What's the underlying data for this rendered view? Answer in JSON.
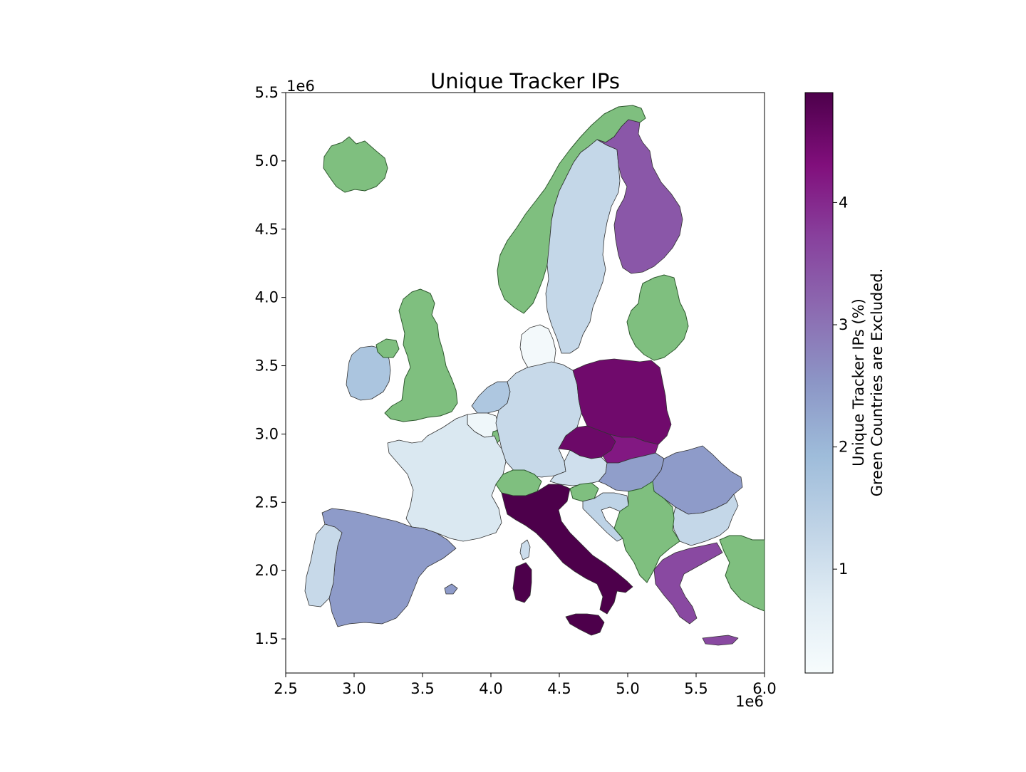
{
  "map": {
    "title": "Unique Tracker IPs",
    "x_offset_label": "1e6",
    "y_offset_label": "1e6",
    "excluded_color": "#7fbf7f",
    "x_ticks": [
      "2.5",
      "3.0",
      "3.5",
      "4.0",
      "4.5",
      "5.0",
      "5.5",
      "6.0"
    ],
    "y_ticks": [
      "5.5",
      "5.0",
      "4.5",
      "4.0",
      "3.5",
      "3.0",
      "2.5",
      "2.0",
      "1.5"
    ],
    "x_range": [
      2500000,
      6000000
    ],
    "y_range": [
      1250000,
      5500000
    ]
  },
  "colorbar": {
    "label_line1": "Unique Tracker IPs (%)",
    "label_line2": "Green Countries are Excluded.",
    "ticks": [
      "1",
      "2",
      "3",
      "4"
    ],
    "range": [
      0.15,
      4.9
    ],
    "colormap": [
      "#f7fcfd",
      "#e0ecf4",
      "#bfd3e6",
      "#9ebcda",
      "#8c96c6",
      "#8c6bb1",
      "#88419d",
      "#810f7c",
      "#4d004b"
    ]
  },
  "regions": [
    {
      "key": "iceland",
      "value": null
    },
    {
      "key": "norway",
      "value": null
    },
    {
      "key": "sweden",
      "value": 1.25
    },
    {
      "key": "finland",
      "value": 3.4
    },
    {
      "key": "baltics",
      "value": null
    },
    {
      "key": "uk",
      "value": null
    },
    {
      "key": "ireland",
      "value": 1.7
    },
    {
      "key": "n-ireland",
      "value": null
    },
    {
      "key": "denmark",
      "value": 0.25
    },
    {
      "key": "netherlands",
      "value": 1.65
    },
    {
      "key": "belgium",
      "value": 0.35
    },
    {
      "key": "luxembourg",
      "value": null
    },
    {
      "key": "germany",
      "value": 1.2
    },
    {
      "key": "poland",
      "value": 4.5
    },
    {
      "key": "czechia",
      "value": 4.55
    },
    {
      "key": "slovakia",
      "value": 4.2
    },
    {
      "key": "austria",
      "value": 1.05
    },
    {
      "key": "hungary",
      "value": 2.4
    },
    {
      "key": "romania",
      "value": 2.45
    },
    {
      "key": "bulgaria",
      "value": 1.25
    },
    {
      "key": "france",
      "value": 0.85
    },
    {
      "key": "switzerland",
      "value": null
    },
    {
      "key": "italy",
      "value": 4.9
    },
    {
      "key": "sardinia",
      "value": 4.9
    },
    {
      "key": "sicily",
      "value": 4.9
    },
    {
      "key": "corsica",
      "value": 1.1
    },
    {
      "key": "slovenia",
      "value": null
    },
    {
      "key": "croatia",
      "value": 1.35
    },
    {
      "key": "western-balkans",
      "value": null
    },
    {
      "key": "greece",
      "value": 3.6
    },
    {
      "key": "crete",
      "value": 3.6
    },
    {
      "key": "turkey",
      "value": null
    },
    {
      "key": "spain",
      "value": 2.45
    },
    {
      "key": "portugal",
      "value": 1.2
    },
    {
      "key": "balearics",
      "value": 2.45
    }
  ]
}
